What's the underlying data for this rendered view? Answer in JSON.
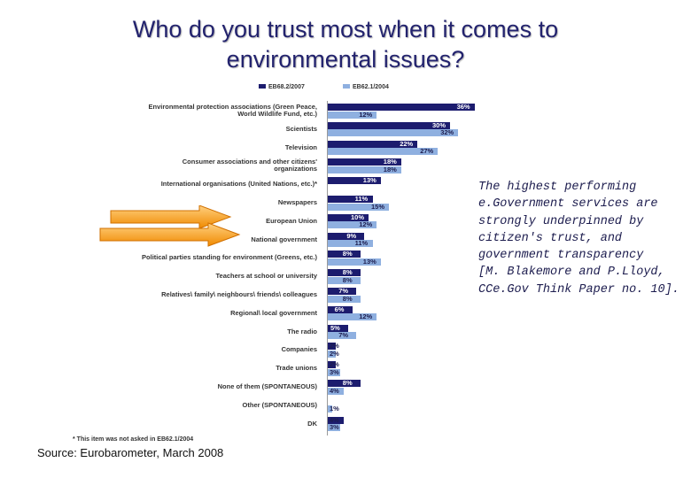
{
  "chart_data": {
    "type": "bar",
    "orientation": "horizontal",
    "title": "Who do you trust most when it comes to\nenvironmental issues?",
    "categories": [
      "Environmental protection associations (Green Peace,\nWorld Wildlife Fund, etc.)",
      "Scientists",
      "Television",
      "Consumer associations and other citizens'\norganizations",
      "International organisations (United Nations, etc.)*",
      "Newspapers",
      "European Union",
      "National government",
      "Political parties standing for environment (Greens, etc.)",
      "Teachers at school or university",
      "Relatives\\ family\\ neighbours\\ friends\\ colleagues",
      "Regional\\ local government",
      "The radio",
      "Companies",
      "Trade unions",
      "None of them (SPONTANEOUS)",
      "Other (SPONTANEOUS)",
      "DK"
    ],
    "series": [
      {
        "name": "EB68.2/2007",
        "color": "#1c1c6e",
        "values": [
          36,
          30,
          22,
          18,
          13,
          11,
          10,
          9,
          8,
          8,
          7,
          6,
          5,
          2,
          2,
          8,
          null,
          4
        ],
        "value_labels": [
          "36%",
          "30%",
          "22%",
          "18%",
          "13%",
          "11%",
          "10%",
          "9%",
          "8%",
          "8%",
          "7%",
          "6%",
          "5%",
          "2%",
          "2%",
          "8%",
          null,
          "4%"
        ]
      },
      {
        "name": "EB62.1/2004",
        "color": "#8fb0e0",
        "values": [
          12,
          32,
          27,
          18,
          null,
          15,
          12,
          11,
          13,
          8,
          8,
          12,
          7,
          2,
          3,
          4,
          1,
          3
        ],
        "value_labels": [
          "12%",
          "32%",
          "27%",
          "18%",
          null,
          "15%",
          "12%",
          "11%",
          "13%",
          "8%",
          "8%",
          "12%",
          "7%",
          "2%",
          "3%",
          "4%",
          "1%",
          "3%"
        ]
      }
    ],
    "footnote": "* This item was not asked in EB62.1/2004",
    "annotation": "The highest performing\ne.Government services are\nstrongly underpinned by\ncitizen's trust, and\ngovernment transparency\n[M. Blakemore and P.Lloyd,\nCCe.Gov Think Paper no. 10].",
    "source": "Source: Eurobarometer, March 2008"
  }
}
